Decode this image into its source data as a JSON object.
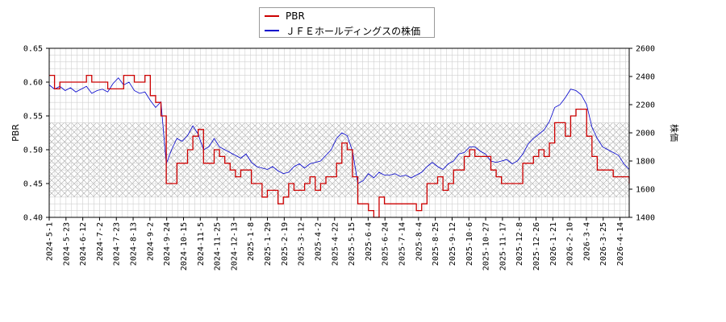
{
  "chart_data": {
    "type": "line",
    "xlabel": "",
    "ylabel_left": "PBR",
    "ylabel_right": "株価",
    "ylim_left": [
      0.4,
      0.65
    ],
    "ylim_right": [
      1400,
      2600
    ],
    "yticks_left": [
      "0.40",
      "0.45",
      "0.50",
      "0.55",
      "0.60",
      "0.65"
    ],
    "yticks_right": [
      "1400",
      "1600",
      "1800",
      "2000",
      "2200",
      "2400",
      "2600"
    ],
    "x_tick_labels": [
      "2024-5-1",
      "2024-5-23",
      "2024-6-12",
      "2024-7-2",
      "2024-7-23",
      "2024-8-13",
      "2024-9-2",
      "2024-9-24",
      "2024-10-15",
      "2024-11-5",
      "2024-11-25",
      "2024-12-13",
      "2025-1-8",
      "2025-1-29",
      "2025-2-19",
      "2025-3-12",
      "2025-4-2",
      "2025-4-22",
      "2025-5-15",
      "2025-6-4",
      "2025-6-24",
      "2025-7-14",
      "2025-8-4",
      "2025-8-25",
      "2025-9-12",
      "2025-10-6",
      "2025-10-27",
      "2025-11-17",
      "2025-12-8",
      "2025-12-26",
      "2026-1-21",
      "2026-2-10",
      "2026-3-4",
      "2026-3-25",
      "2026-4-14"
    ],
    "band": {
      "series": "PBR",
      "from": 0.43,
      "to": 0.54
    },
    "grid": true,
    "legend_position": "top-center",
    "series": [
      {
        "name": "PBR",
        "axis": "left",
        "color": "#cc0000",
        "step": true,
        "points": [
          [
            0,
            0.61
          ],
          [
            1,
            0.59
          ],
          [
            2,
            0.6
          ],
          [
            5,
            0.6
          ],
          [
            7,
            0.61
          ],
          [
            8,
            0.6
          ],
          [
            10,
            0.6
          ],
          [
            11,
            0.59
          ],
          [
            14,
            0.61
          ],
          [
            16,
            0.6
          ],
          [
            18,
            0.61
          ],
          [
            19,
            0.58
          ],
          [
            20,
            0.57
          ],
          [
            21,
            0.55
          ],
          [
            22,
            0.45
          ],
          [
            24,
            0.48
          ],
          [
            25,
            0.48
          ],
          [
            26,
            0.5
          ],
          [
            27,
            0.52
          ],
          [
            28,
            0.53
          ],
          [
            29,
            0.48
          ],
          [
            30,
            0.48
          ],
          [
            31,
            0.5
          ],
          [
            32,
            0.49
          ],
          [
            33,
            0.48
          ],
          [
            34,
            0.47
          ],
          [
            35,
            0.46
          ],
          [
            36,
            0.47
          ],
          [
            37,
            0.47
          ],
          [
            38,
            0.45
          ],
          [
            40,
            0.43
          ],
          [
            41,
            0.44
          ],
          [
            42,
            0.44
          ],
          [
            43,
            0.42
          ],
          [
            44,
            0.43
          ],
          [
            45,
            0.45
          ],
          [
            46,
            0.44
          ],
          [
            48,
            0.45
          ],
          [
            49,
            0.46
          ],
          [
            50,
            0.44
          ],
          [
            51,
            0.45
          ],
          [
            52,
            0.46
          ],
          [
            53,
            0.46
          ],
          [
            54,
            0.48
          ],
          [
            55,
            0.51
          ],
          [
            56,
            0.5
          ],
          [
            57,
            0.46
          ],
          [
            58,
            0.42
          ],
          [
            59,
            0.42
          ],
          [
            60,
            0.41
          ],
          [
            61,
            0.4
          ],
          [
            62,
            0.43
          ],
          [
            63,
            0.42
          ],
          [
            64,
            0.42
          ],
          [
            65,
            0.42
          ],
          [
            66,
            0.42
          ],
          [
            67,
            0.42
          ],
          [
            68,
            0.42
          ],
          [
            69,
            0.41
          ],
          [
            70,
            0.42
          ],
          [
            71,
            0.45
          ],
          [
            72,
            0.45
          ],
          [
            73,
            0.46
          ],
          [
            74,
            0.44
          ],
          [
            75,
            0.45
          ],
          [
            76,
            0.47
          ],
          [
            77,
            0.47
          ],
          [
            78,
            0.49
          ],
          [
            79,
            0.5
          ],
          [
            80,
            0.49
          ],
          [
            81,
            0.49
          ],
          [
            82,
            0.49
          ],
          [
            83,
            0.47
          ],
          [
            84,
            0.46
          ],
          [
            85,
            0.45
          ],
          [
            86,
            0.45
          ],
          [
            87,
            0.45
          ],
          [
            88,
            0.45
          ],
          [
            89,
            0.48
          ],
          [
            90,
            0.48
          ],
          [
            91,
            0.49
          ],
          [
            92,
            0.5
          ],
          [
            93,
            0.49
          ],
          [
            94,
            0.51
          ],
          [
            95,
            0.54
          ],
          [
            96,
            0.54
          ],
          [
            97,
            0.52
          ],
          [
            98,
            0.55
          ],
          [
            99,
            0.56
          ],
          [
            100,
            0.56
          ],
          [
            101,
            0.52
          ],
          [
            102,
            0.49
          ],
          [
            103,
            0.47
          ],
          [
            104,
            0.47
          ],
          [
            105,
            0.47
          ],
          [
            106,
            0.46
          ],
          [
            107,
            0.46
          ],
          [
            108,
            0.46
          ],
          [
            109,
            0.45
          ]
        ]
      },
      {
        "name": "ＪＦＥホールディングスの株価",
        "axis": "right",
        "color": "#0000cc",
        "step": false,
        "points": [
          [
            0,
            2340
          ],
          [
            1,
            2310
          ],
          [
            2,
            2330
          ],
          [
            3,
            2300
          ],
          [
            4,
            2320
          ],
          [
            5,
            2290
          ],
          [
            6,
            2310
          ],
          [
            7,
            2330
          ],
          [
            8,
            2280
          ],
          [
            9,
            2300
          ],
          [
            10,
            2310
          ],
          [
            11,
            2290
          ],
          [
            12,
            2350
          ],
          [
            13,
            2390
          ],
          [
            14,
            2340
          ],
          [
            15,
            2360
          ],
          [
            16,
            2300
          ],
          [
            17,
            2280
          ],
          [
            18,
            2290
          ],
          [
            19,
            2230
          ],
          [
            20,
            2180
          ],
          [
            21,
            2220
          ],
          [
            22,
            1780
          ],
          [
            23,
            1880
          ],
          [
            24,
            1960
          ],
          [
            25,
            1940
          ],
          [
            26,
            1980
          ],
          [
            27,
            2050
          ],
          [
            28,
            1990
          ],
          [
            29,
            1880
          ],
          [
            30,
            1900
          ],
          [
            31,
            1960
          ],
          [
            32,
            1900
          ],
          [
            33,
            1880
          ],
          [
            34,
            1860
          ],
          [
            35,
            1840
          ],
          [
            36,
            1820
          ],
          [
            37,
            1850
          ],
          [
            38,
            1790
          ],
          [
            39,
            1760
          ],
          [
            40,
            1750
          ],
          [
            41,
            1740
          ],
          [
            42,
            1760
          ],
          [
            43,
            1730
          ],
          [
            44,
            1710
          ],
          [
            45,
            1720
          ],
          [
            46,
            1760
          ],
          [
            47,
            1780
          ],
          [
            48,
            1750
          ],
          [
            49,
            1780
          ],
          [
            50,
            1790
          ],
          [
            51,
            1800
          ],
          [
            52,
            1840
          ],
          [
            53,
            1880
          ],
          [
            54,
            1960
          ],
          [
            55,
            2000
          ],
          [
            56,
            1980
          ],
          [
            57,
            1870
          ],
          [
            58,
            1640
          ],
          [
            59,
            1660
          ],
          [
            60,
            1710
          ],
          [
            61,
            1680
          ],
          [
            62,
            1720
          ],
          [
            63,
            1700
          ],
          [
            64,
            1700
          ],
          [
            65,
            1710
          ],
          [
            66,
            1690
          ],
          [
            67,
            1700
          ],
          [
            68,
            1680
          ],
          [
            69,
            1700
          ],
          [
            70,
            1720
          ],
          [
            71,
            1760
          ],
          [
            72,
            1790
          ],
          [
            73,
            1760
          ],
          [
            74,
            1740
          ],
          [
            75,
            1780
          ],
          [
            76,
            1800
          ],
          [
            77,
            1850
          ],
          [
            78,
            1860
          ],
          [
            79,
            1900
          ],
          [
            80,
            1900
          ],
          [
            81,
            1870
          ],
          [
            82,
            1850
          ],
          [
            83,
            1800
          ],
          [
            84,
            1790
          ],
          [
            85,
            1800
          ],
          [
            86,
            1810
          ],
          [
            87,
            1780
          ],
          [
            88,
            1800
          ],
          [
            89,
            1850
          ],
          [
            90,
            1920
          ],
          [
            91,
            1960
          ],
          [
            92,
            1990
          ],
          [
            93,
            2020
          ],
          [
            94,
            2080
          ],
          [
            95,
            2180
          ],
          [
            96,
            2200
          ],
          [
            97,
            2250
          ],
          [
            98,
            2310
          ],
          [
            99,
            2300
          ],
          [
            100,
            2270
          ],
          [
            101,
            2200
          ],
          [
            102,
            2040
          ],
          [
            103,
            1960
          ],
          [
            104,
            1900
          ],
          [
            105,
            1880
          ],
          [
            106,
            1860
          ],
          [
            107,
            1840
          ],
          [
            108,
            1780
          ],
          [
            109,
            1740
          ]
        ]
      }
    ]
  }
}
